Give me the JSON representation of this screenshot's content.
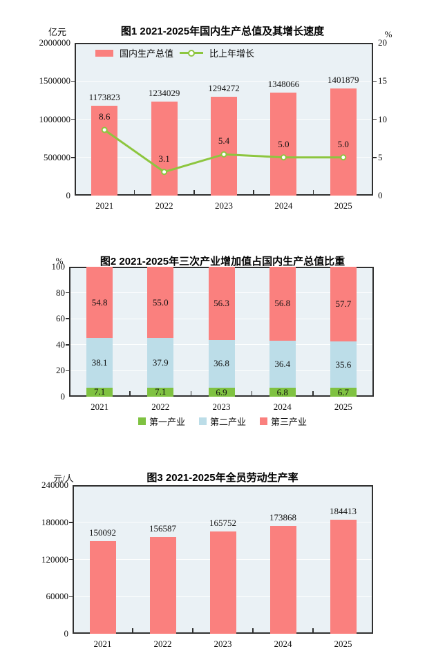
{
  "colors": {
    "bar_red": "#FA807E",
    "line_green": "#8DC63F",
    "industry_green": "#7FC241",
    "industry_blue": "#BCDDE8",
    "industry_red": "#FA807E",
    "plot_bg": "#EAF1F5",
    "axis": "#2F2F2F",
    "grid": "#FFFFFF",
    "text": "#101010"
  },
  "chart_data": [
    {
      "type": "bar+line",
      "title": "图1  2021-2025年国内生产总值及其增长速度",
      "categories": [
        "2021",
        "2022",
        "2023",
        "2024",
        "2025"
      ],
      "left_axis": {
        "unit": "亿元",
        "ticks": [
          0,
          500000,
          1000000,
          1500000,
          2000000
        ],
        "max": 2000000
      },
      "right_axis": {
        "unit": "%",
        "ticks": [
          0,
          5,
          10,
          15,
          20
        ],
        "max": 20
      },
      "grid": true,
      "legend_position": "top-left-inside",
      "series": [
        {
          "name": "国内生产总值",
          "type": "bar",
          "axis": "left",
          "values": [
            1173823,
            1234029,
            1294272,
            1348066,
            1401879
          ],
          "labels": [
            "1173823",
            "1234029",
            "1294272",
            "1348066",
            "1401879"
          ]
        },
        {
          "name": "比上年增长",
          "type": "line",
          "axis": "right",
          "values": [
            8.6,
            3.1,
            5.4,
            5.0,
            5.0
          ],
          "labels": [
            "8.6",
            "3.1",
            "5.4",
            "5.0",
            "5.0"
          ]
        }
      ]
    },
    {
      "type": "stacked-bar",
      "title": "图2  2021-2025年三次产业增加值占国内生产总值比重",
      "categories": [
        "2021",
        "2022",
        "2023",
        "2024",
        "2025"
      ],
      "left_axis": {
        "unit": "%",
        "ticks": [
          0,
          20,
          40,
          60,
          80,
          100
        ],
        "max": 100
      },
      "grid": true,
      "legend_position": "bottom-center",
      "series": [
        {
          "name": "第一产业",
          "color": "industry_green",
          "values": [
            7.1,
            7.1,
            6.9,
            6.8,
            6.7
          ],
          "labels": [
            "7.1",
            "7.1",
            "6.9",
            "6.8",
            "6.7"
          ]
        },
        {
          "name": "第二产业",
          "color": "industry_blue",
          "values": [
            38.1,
            37.9,
            36.8,
            36.4,
            35.6
          ],
          "labels": [
            "38.1",
            "37.9",
            "36.8",
            "36.4",
            "35.6"
          ]
        },
        {
          "name": "第三产业",
          "color": "industry_red",
          "values": [
            54.8,
            55.0,
            56.3,
            56.8,
            57.7
          ],
          "labels": [
            "54.8",
            "55.0",
            "56.3",
            "56.8",
            "57.7"
          ]
        }
      ]
    },
    {
      "type": "bar",
      "title": "图3  2021-2025年全员劳动生产率",
      "categories": [
        "2021",
        "2022",
        "2023",
        "2024",
        "2025"
      ],
      "left_axis": {
        "unit": "元/人",
        "ticks": [
          0,
          60000,
          120000,
          180000,
          240000
        ],
        "max": 240000
      },
      "grid": true,
      "series": [
        {
          "color": "bar_red",
          "values": [
            150092,
            156587,
            165752,
            173868,
            184413
          ],
          "labels": [
            "150092",
            "156587",
            "165752",
            "173868",
            "184413"
          ]
        }
      ]
    }
  ]
}
